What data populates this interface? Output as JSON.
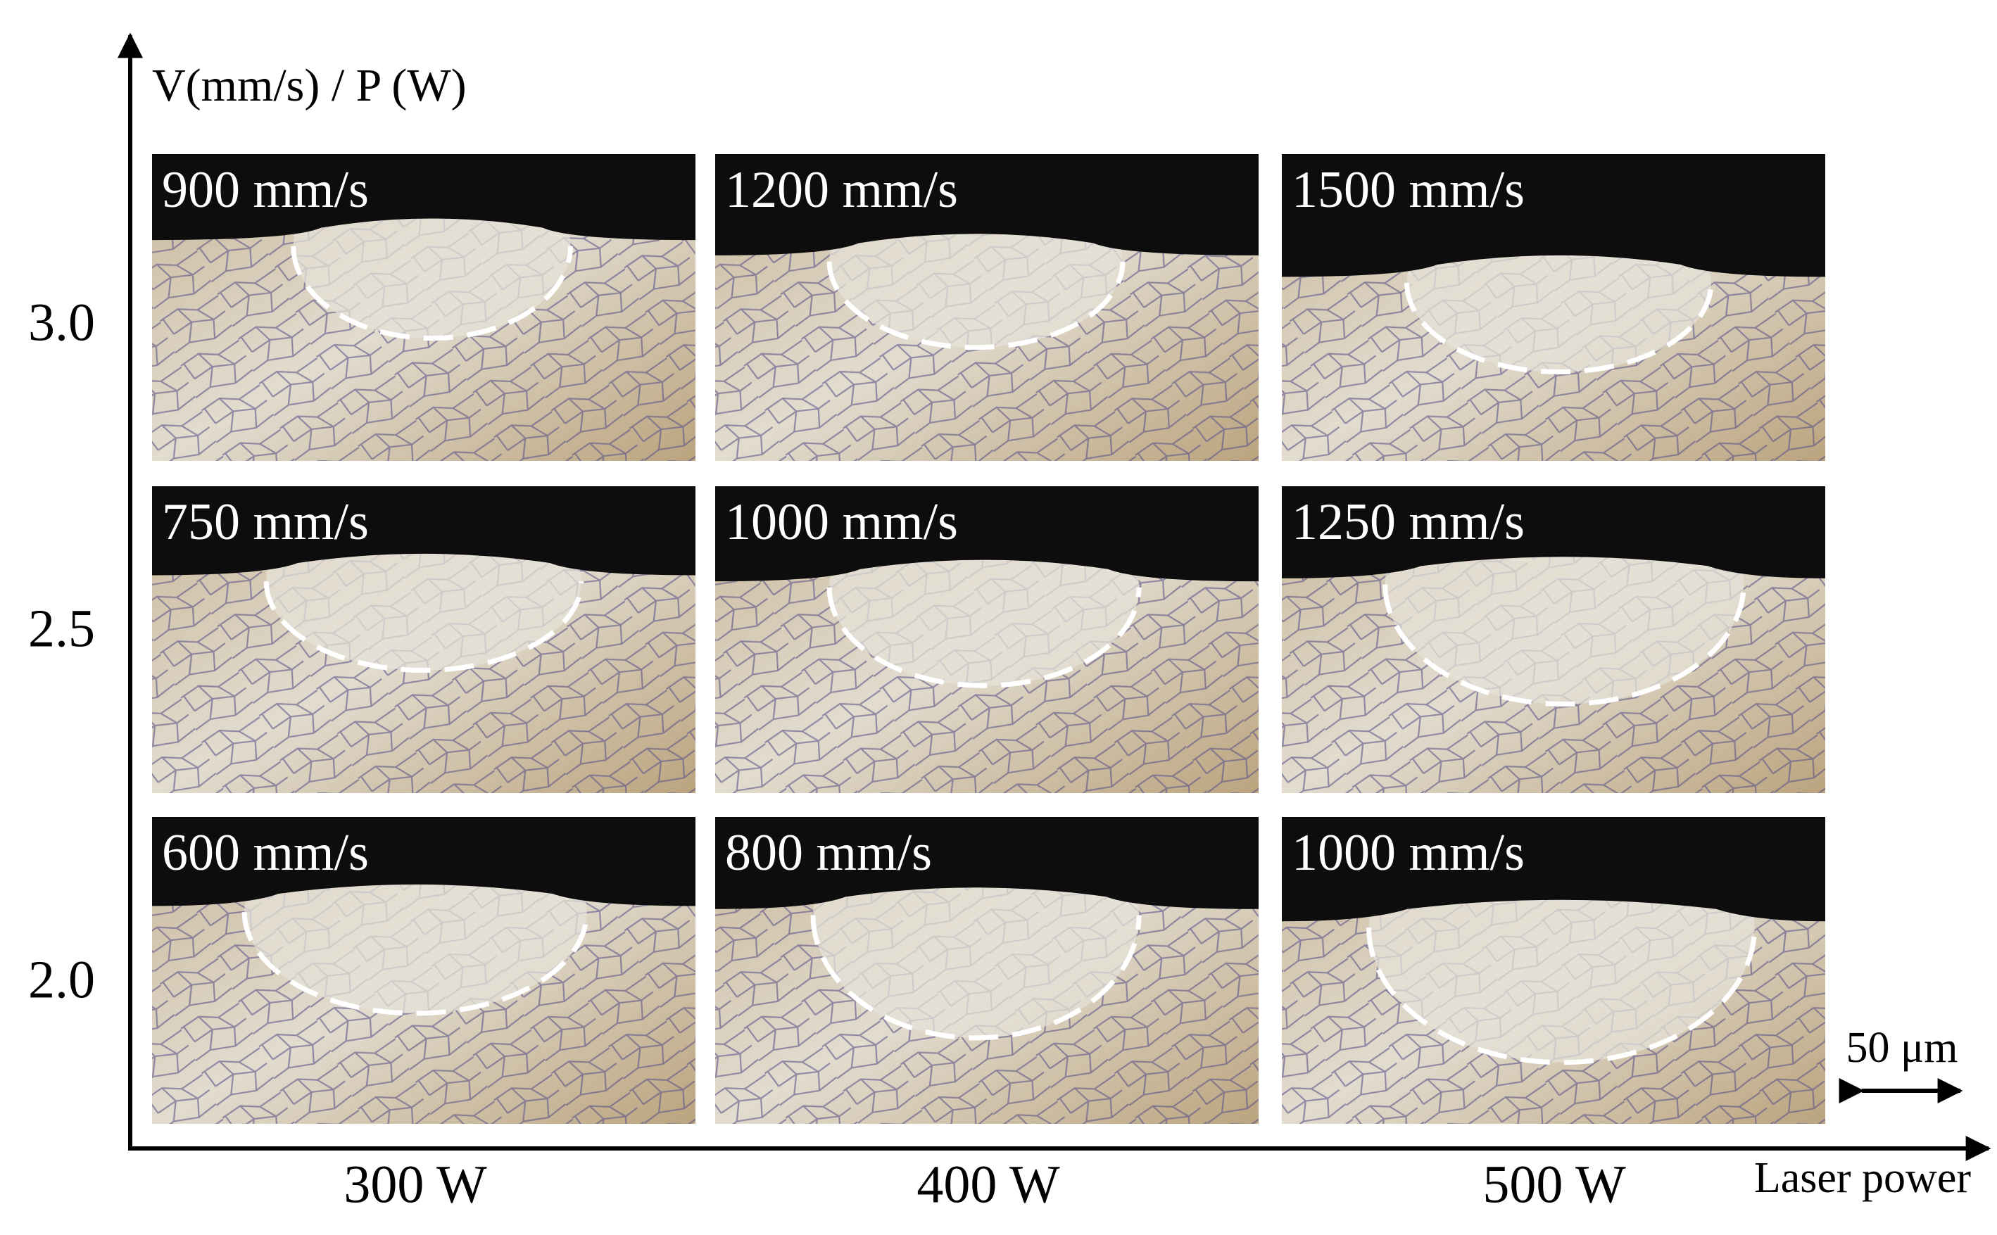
{
  "y_axis_label": "V(mm/s) / P (W)",
  "x_axis_label": "Laser power",
  "row_labels": [
    "3.0",
    "2.5",
    "2.0"
  ],
  "column_labels": [
    "300 W",
    "400 W",
    "500 W"
  ],
  "panels": [
    {
      "label": "900 mm/s"
    },
    {
      "label": "1200 mm/s"
    },
    {
      "label": "1500 mm/s"
    },
    {
      "label": "750 mm/s"
    },
    {
      "label": "1000 mm/s"
    },
    {
      "label": "1250 mm/s"
    },
    {
      "label": "600 mm/s"
    },
    {
      "label": "800 mm/s"
    },
    {
      "label": "1000 mm/s"
    }
  ],
  "scale_bar": "50 μm"
}
